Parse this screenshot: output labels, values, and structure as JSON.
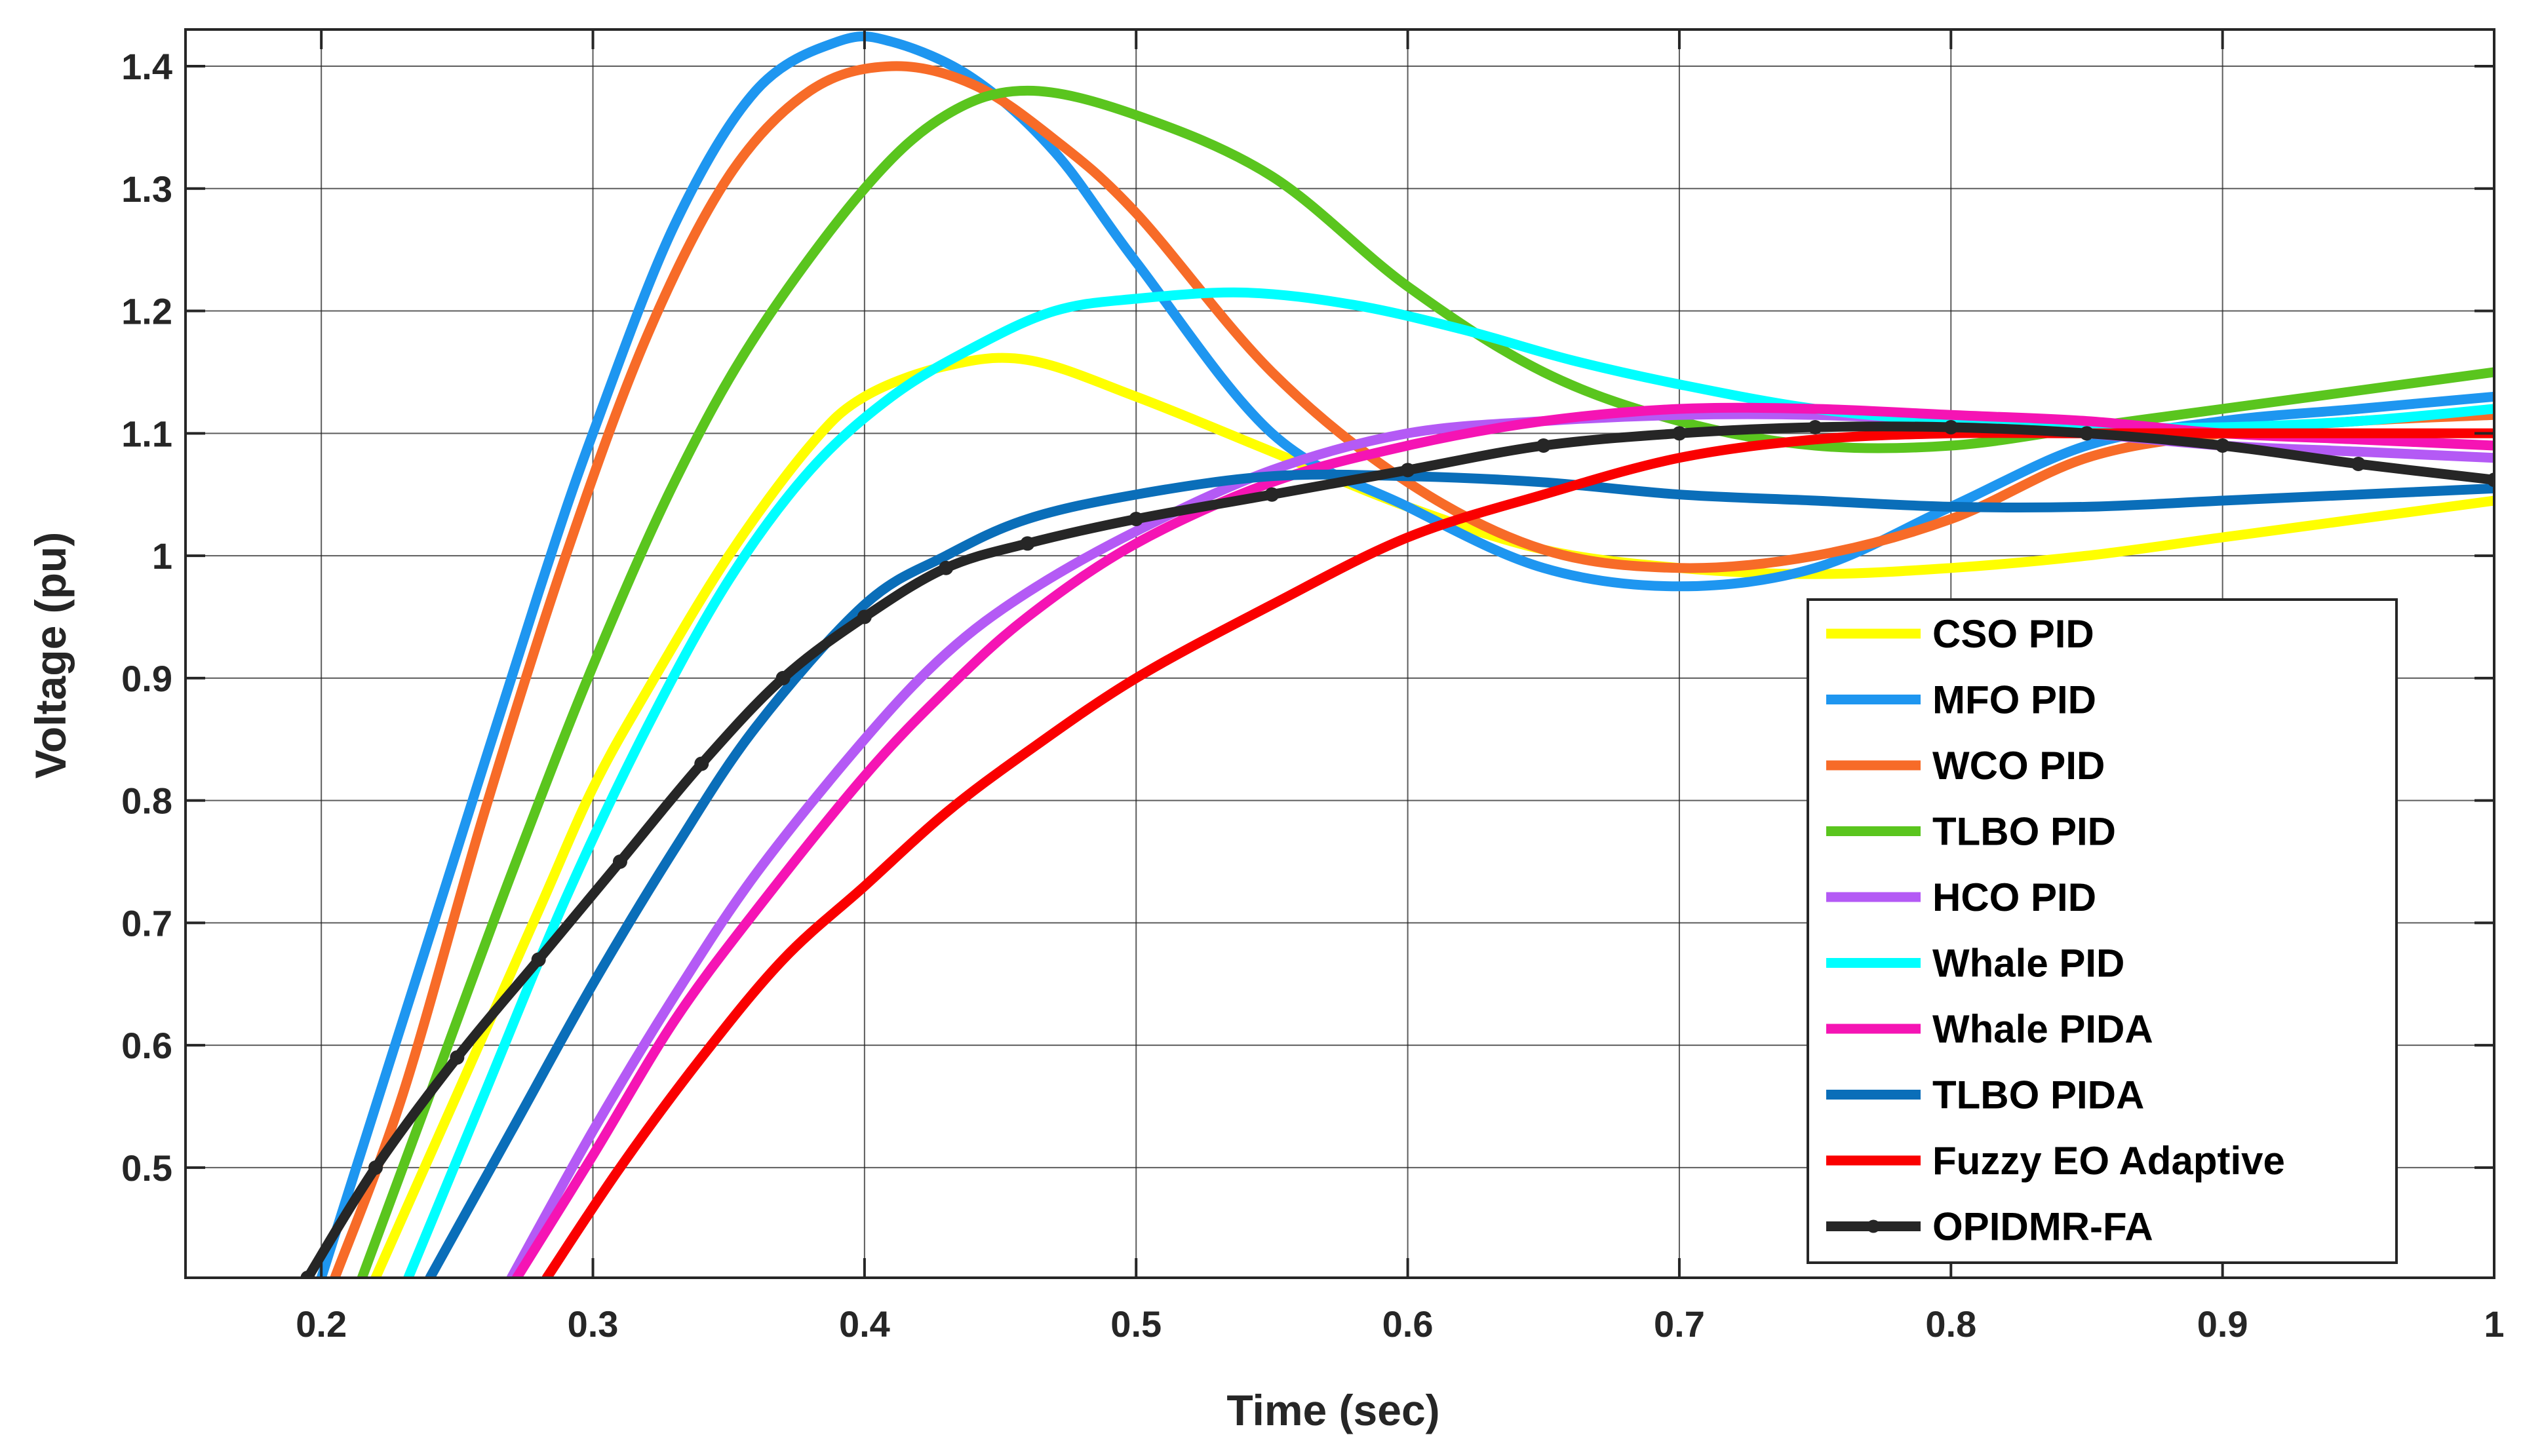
{
  "chart_data": {
    "type": "line",
    "title": "",
    "xlabel": "Time (sec)",
    "ylabel": "Voltage (pu)",
    "xlim": [
      0.15,
      1.0
    ],
    "ylim": [
      0.41,
      1.43
    ],
    "grid": true,
    "legend_position": "bottom-right",
    "x_ticks": [
      0.2,
      0.3,
      0.4,
      0.5,
      0.6,
      0.7,
      0.8,
      0.9,
      1.0
    ],
    "x_tick_labels": [
      "0.2",
      "0.3",
      "0.4",
      "0.5",
      "0.6",
      "0.7",
      "0.8",
      "0.9",
      "1"
    ],
    "y_ticks": [
      0.5,
      0.6,
      0.7,
      0.8,
      0.9,
      1.0,
      1.1,
      1.2,
      1.3,
      1.4
    ],
    "y_tick_labels": [
      "0.5",
      "0.6",
      "0.7",
      "0.8",
      "0.9",
      "1",
      "1.1",
      "1.2",
      "1.3",
      "1.4"
    ],
    "series": [
      {
        "name": "CSO PID",
        "color": "#ffff00",
        "marker": "none",
        "x": [
          0.22,
          0.25,
          0.28,
          0.3,
          0.32,
          0.35,
          0.38,
          0.4,
          0.43,
          0.46,
          0.5,
          0.55,
          0.6,
          0.65,
          0.7,
          0.75,
          0.8,
          0.85,
          0.9,
          0.95,
          1.0
        ],
        "y": [
          0.41,
          0.56,
          0.71,
          0.81,
          0.89,
          1.0,
          1.09,
          1.13,
          1.155,
          1.16,
          1.13,
          1.085,
          1.04,
          1.005,
          0.99,
          0.985,
          0.99,
          1.0,
          1.015,
          1.03,
          1.045
        ]
      },
      {
        "name": "MFO PID",
        "color": "#1e96f0",
        "marker": "none",
        "x": [
          0.2,
          0.22,
          0.25,
          0.28,
          0.3,
          0.33,
          0.36,
          0.39,
          0.41,
          0.44,
          0.47,
          0.5,
          0.55,
          0.6,
          0.65,
          0.7,
          0.75,
          0.8,
          0.85,
          0.9,
          0.95,
          1.0
        ],
        "y": [
          0.41,
          0.55,
          0.76,
          0.97,
          1.1,
          1.27,
          1.38,
          1.42,
          1.42,
          1.39,
          1.33,
          1.24,
          1.1,
          1.04,
          0.99,
          0.975,
          0.99,
          1.04,
          1.09,
          1.11,
          1.12,
          1.13
        ]
      },
      {
        "name": "WCO PID",
        "color": "#f76b28",
        "marker": "none",
        "x": [
          0.205,
          0.23,
          0.26,
          0.29,
          0.32,
          0.35,
          0.38,
          0.41,
          0.44,
          0.47,
          0.5,
          0.55,
          0.6,
          0.65,
          0.7,
          0.75,
          0.8,
          0.85,
          0.9,
          0.95,
          1.0
        ],
        "y": [
          0.41,
          0.56,
          0.79,
          1.0,
          1.18,
          1.31,
          1.38,
          1.4,
          1.385,
          1.34,
          1.28,
          1.15,
          1.06,
          1.005,
          0.99,
          1.0,
          1.03,
          1.08,
          1.1,
          1.11,
          1.115
        ]
      },
      {
        "name": "TLBO PID",
        "color": "#5ac51e",
        "marker": "none",
        "x": [
          0.215,
          0.24,
          0.27,
          0.3,
          0.33,
          0.36,
          0.4,
          0.43,
          0.46,
          0.5,
          0.55,
          0.6,
          0.65,
          0.7,
          0.75,
          0.8,
          0.85,
          0.9,
          0.95,
          1.0
        ],
        "y": [
          0.41,
          0.56,
          0.74,
          0.91,
          1.06,
          1.18,
          1.3,
          1.36,
          1.38,
          1.36,
          1.31,
          1.22,
          1.15,
          1.11,
          1.09,
          1.09,
          1.105,
          1.12,
          1.135,
          1.15
        ]
      },
      {
        "name": "HCO PID",
        "color": "#b45af5",
        "marker": "none",
        "x": [
          0.27,
          0.3,
          0.33,
          0.36,
          0.4,
          0.43,
          0.46,
          0.5,
          0.55,
          0.6,
          0.65,
          0.7,
          0.75,
          0.8,
          0.85,
          0.9,
          0.95,
          1.0
        ],
        "y": [
          0.41,
          0.53,
          0.64,
          0.74,
          0.85,
          0.92,
          0.97,
          1.02,
          1.07,
          1.1,
          1.11,
          1.115,
          1.115,
          1.11,
          1.1,
          1.09,
          1.085,
          1.08
        ]
      },
      {
        "name": "Whale PID",
        "color": "#00ffff",
        "marker": "none",
        "x": [
          0.232,
          0.26,
          0.29,
          0.32,
          0.35,
          0.38,
          0.41,
          0.44,
          0.47,
          0.5,
          0.54,
          0.58,
          0.62,
          0.66,
          0.7,
          0.75,
          0.8,
          0.85,
          0.9,
          0.95,
          1.0
        ],
        "y": [
          0.41,
          0.56,
          0.72,
          0.86,
          0.98,
          1.07,
          1.13,
          1.17,
          1.2,
          1.21,
          1.215,
          1.205,
          1.185,
          1.16,
          1.14,
          1.12,
          1.11,
          1.105,
          1.105,
          1.11,
          1.12
        ]
      },
      {
        "name": "Whale PIDA",
        "color": "#f514b4",
        "marker": "none",
        "x": [
          0.272,
          0.3,
          0.33,
          0.36,
          0.4,
          0.43,
          0.46,
          0.5,
          0.55,
          0.6,
          0.65,
          0.7,
          0.75,
          0.8,
          0.85,
          0.9,
          0.95,
          1.0
        ],
        "y": [
          0.41,
          0.51,
          0.62,
          0.71,
          0.82,
          0.89,
          0.95,
          1.01,
          1.06,
          1.09,
          1.11,
          1.12,
          1.12,
          1.115,
          1.11,
          1.1,
          1.095,
          1.09
        ]
      },
      {
        "name": "TLBO PIDA",
        "color": "#0a6eb9",
        "marker": "none",
        "x": [
          0.24,
          0.27,
          0.3,
          0.33,
          0.36,
          0.4,
          0.43,
          0.46,
          0.5,
          0.55,
          0.6,
          0.65,
          0.7,
          0.75,
          0.8,
          0.85,
          0.9,
          0.95,
          1.0
        ],
        "y": [
          0.41,
          0.53,
          0.65,
          0.76,
          0.86,
          0.96,
          1.0,
          1.03,
          1.05,
          1.065,
          1.065,
          1.06,
          1.05,
          1.045,
          1.04,
          1.04,
          1.045,
          1.05,
          1.055
        ]
      },
      {
        "name": "Fuzzy EO Adaptive",
        "color": "#fa0000",
        "marker": "none",
        "x": [
          0.283,
          0.31,
          0.34,
          0.37,
          0.4,
          0.43,
          0.46,
          0.5,
          0.55,
          0.6,
          0.65,
          0.7,
          0.75,
          0.8,
          0.85,
          0.9,
          0.95,
          1.0
        ],
        "y": [
          0.41,
          0.5,
          0.59,
          0.67,
          0.73,
          0.79,
          0.84,
          0.9,
          0.96,
          1.015,
          1.05,
          1.08,
          1.095,
          1.1,
          1.1,
          1.1,
          1.1,
          1.1
        ]
      },
      {
        "name": "OPIDMR-FA",
        "color": "#262626",
        "marker": "dot",
        "x": [
          0.195,
          0.22,
          0.25,
          0.28,
          0.31,
          0.34,
          0.37,
          0.4,
          0.43,
          0.46,
          0.5,
          0.55,
          0.6,
          0.65,
          0.7,
          0.75,
          0.8,
          0.85,
          0.9,
          0.95,
          1.0
        ],
        "y": [
          0.41,
          0.5,
          0.59,
          0.67,
          0.75,
          0.83,
          0.9,
          0.95,
          0.99,
          1.01,
          1.03,
          1.05,
          1.07,
          1.09,
          1.1,
          1.105,
          1.105,
          1.1,
          1.09,
          1.075,
          1.062
        ]
      }
    ]
  }
}
